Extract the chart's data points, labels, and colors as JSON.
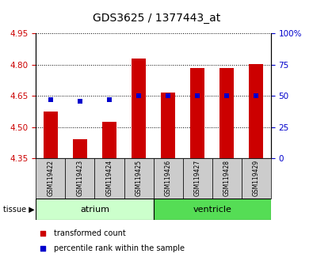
{
  "title": "GDS3625 / 1377443_at",
  "samples": [
    "GSM119422",
    "GSM119423",
    "GSM119424",
    "GSM119425",
    "GSM119426",
    "GSM119427",
    "GSM119428",
    "GSM119429"
  ],
  "transformed_counts": [
    4.575,
    4.44,
    4.525,
    4.83,
    4.665,
    4.785,
    4.785,
    4.805
  ],
  "percentile_ranks": [
    47,
    46,
    47,
    50,
    50,
    50,
    50,
    50
  ],
  "ylim_left": [
    4.35,
    4.95
  ],
  "yticks_left": [
    4.35,
    4.5,
    4.65,
    4.8,
    4.95
  ],
  "yticks_right": [
    0,
    25,
    50,
    75,
    100
  ],
  "ylim_right": [
    0,
    100
  ],
  "bar_base": 4.35,
  "bar_color": "#cc0000",
  "dot_color": "#0000cc",
  "tissue_groups": [
    {
      "label": "atrium",
      "samples": [
        0,
        1,
        2,
        3
      ],
      "color": "#ccffcc"
    },
    {
      "label": "ventricle",
      "samples": [
        4,
        5,
        6,
        7
      ],
      "color": "#55dd55"
    }
  ],
  "left_tick_color": "#cc0000",
  "right_tick_color": "#0000cc",
  "bar_width": 0.5,
  "dot_size": 18,
  "sample_box_color": "#cccccc"
}
